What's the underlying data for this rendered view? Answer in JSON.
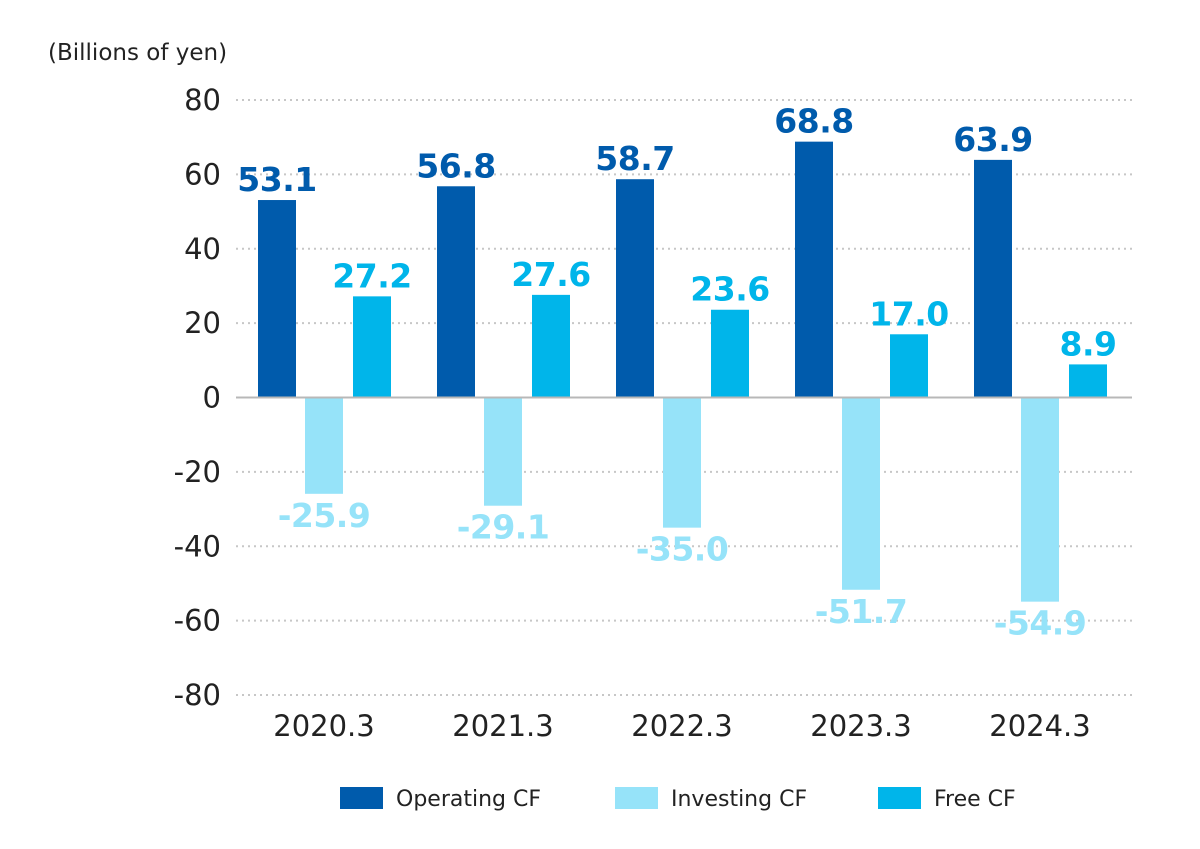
{
  "chart_data": {
    "type": "bar",
    "unit_label": "(Billions of yen)",
    "categories": [
      "2020.3",
      "2021.3",
      "2022.3",
      "2023.3",
      "2024.3"
    ],
    "series": [
      {
        "name": "Operating CF",
        "color": "#005bac",
        "values": [
          53.1,
          56.8,
          58.7,
          68.8,
          63.9
        ],
        "labels": [
          "53.1",
          "56.8",
          "58.7",
          "68.8",
          "63.9"
        ]
      },
      {
        "name": "Investing CF",
        "color": "#96e3f9",
        "values": [
          -25.9,
          -29.1,
          -35.0,
          -51.7,
          -54.9
        ],
        "labels": [
          "-25.9",
          "-29.1",
          "-35.0",
          "-51.7",
          "-54.9"
        ]
      },
      {
        "name": "Free CF",
        "color": "#00b5ea",
        "values": [
          27.2,
          27.6,
          23.6,
          17.0,
          8.9
        ],
        "labels": [
          "27.2",
          "27.6",
          "23.6",
          "17.0",
          "8.9"
        ]
      }
    ],
    "ylim": [
      -80,
      80
    ],
    "yticks": [
      80,
      60,
      40,
      20,
      0,
      -20,
      -40,
      -60,
      -80
    ],
    "grid": true,
    "legend_position": "bottom-center"
  }
}
